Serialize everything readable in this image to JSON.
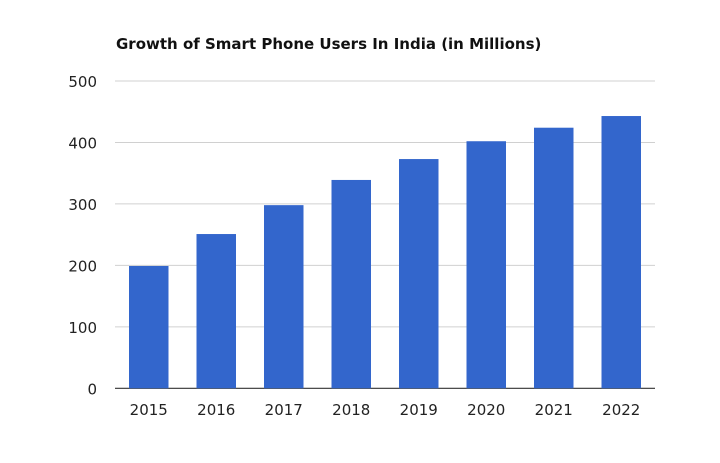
{
  "chart_data": {
    "type": "bar",
    "title": "Growth of Smart Phone Users In India (in Millions)",
    "xlabel": "",
    "ylabel": "",
    "categories": [
      "2015",
      "2016",
      "2017",
      "2018",
      "2019",
      "2020",
      "2021",
      "2022"
    ],
    "values": [
      199,
      251,
      298,
      339,
      373,
      402,
      424,
      443
    ],
    "ylim": [
      0,
      500
    ],
    "yticks": [
      "0",
      "100",
      "200",
      "300",
      "400",
      "500"
    ],
    "grid": true,
    "legend": "none",
    "bar_color": "#3366cc"
  }
}
